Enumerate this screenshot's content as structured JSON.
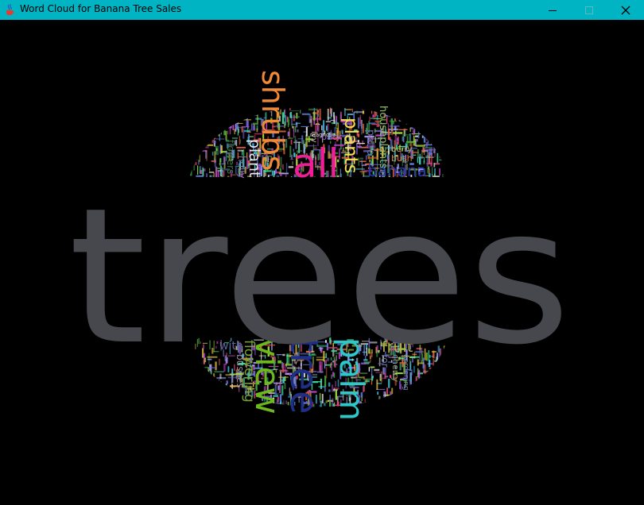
{
  "window": {
    "title": "Word Cloud for Banana Tree Sales",
    "icon": "java-cup-icon",
    "titlebar_color": "#00b4c4",
    "buttons": {
      "minimize_icon": "minimize-icon",
      "maximize_icon": "maximize-icon",
      "close_icon": "close-icon"
    }
  },
  "cloud": {
    "background": "#000000",
    "words": {
      "trees": {
        "text": "trees",
        "color": "#46484d"
      },
      "shrubs": {
        "text": "shrubs",
        "color": "#f08a36"
      },
      "all": {
        "text": "all",
        "color": "#f01d96"
      },
      "plants": {
        "text": "plants",
        "color": "#f2e24a"
      },
      "banana": {
        "text": "banana",
        "color": "#2a3aa6"
      },
      "plant": {
        "text": "plant",
        "color": "#e8e8f0"
      },
      "holly": {
        "text": "holly",
        "color": "#7a7fb0"
      },
      "flowers": {
        "text": "flowers",
        "color": "#3e7a3e"
      },
      "houseplants": {
        "text": "houseplants",
        "color": "#8fbf6a"
      },
      "patio": {
        "text": "patio",
        "color": "#6a6aa8"
      },
      "bush": {
        "text": "bush",
        "color": "#e07d3a"
      },
      "back": {
        "text": "back",
        "color": "#a06ad0"
      },
      "ivy": {
        "text": "ivy",
        "color": "#c8b8a0"
      },
      "magnolia": {
        "text": "magnolia",
        "color": "#e8e8e8"
      },
      "berry": {
        "text": "berry",
        "color": "#c0c060"
      },
      "view": {
        "text": "view",
        "color": "#6db81b"
      },
      "tree": {
        "text": "tree",
        "color": "#1f2f86"
      },
      "palm": {
        "text": "palm",
        "color": "#2ec8c8"
      },
      "flowering": {
        "text": "flowering",
        "color": "#7aa33a"
      },
      "fruit": {
        "text": "fruit",
        "color": "#b0b04a"
      },
      "with": {
        "text": "with",
        "color": "#5a6a9a"
      },
      "bushes": {
        "text": "bushes",
        "color": "#9a8aa0"
      },
      "for": {
        "text": "for",
        "color": "#6a7aa0"
      },
      "cherry": {
        "text": "cherry",
        "color": "#8a9a6a"
      },
      "gardening": {
        "text": "gardening",
        "color": "#6a8aa8"
      }
    }
  }
}
